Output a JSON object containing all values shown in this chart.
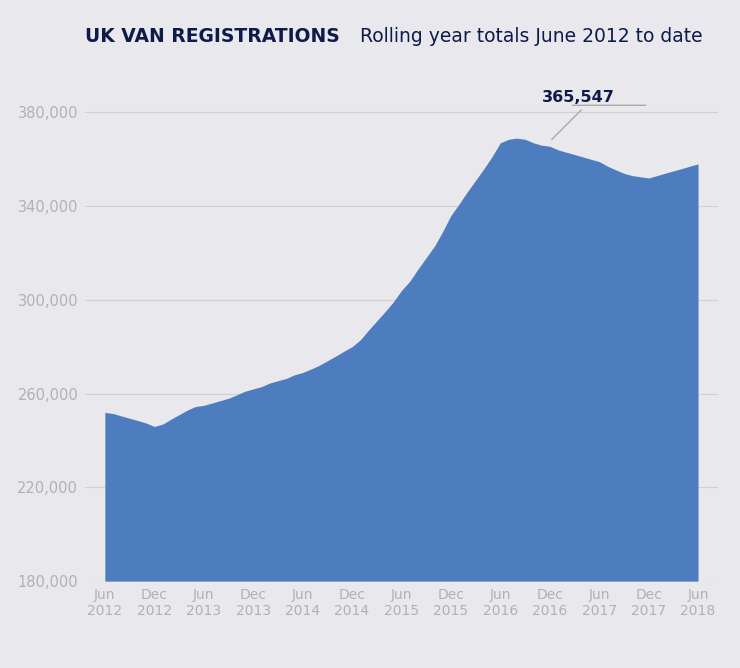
{
  "title_bold": "UK VAN REGISTRATIONS",
  "title_regular": " Rolling year totals June 2012 to date",
  "bg_color": "#e9e9ed",
  "plot_bg_color": "#e9e9ed",
  "fill_color": "#4e7dbf",
  "ylim": [
    180000,
    398000
  ],
  "yticks": [
    180000,
    220000,
    260000,
    300000,
    340000,
    380000
  ],
  "ytick_labels": [
    "180,000",
    "220,000",
    "260,000",
    "300,000",
    "340,000",
    "380,000"
  ],
  "peak_value": "365,547",
  "peak_annotation_color": "#0d1a4a",
  "axis_label_color": "#b0b0b8",
  "x_labels": [
    "Jun\n2012",
    "Dec\n2012",
    "Jun\n2013",
    "Dec\n2013",
    "Jun\n2014",
    "Dec\n2014",
    "Jun\n2015",
    "Dec\n2015",
    "Jun\n2016",
    "Dec\n2016",
    "Jun\n2017",
    "Dec\n2017",
    "Jun\n2018"
  ],
  "xtick_positions": [
    0,
    1,
    2,
    3,
    4,
    5,
    6,
    7,
    8,
    9,
    10,
    11,
    12
  ],
  "grid_color": "#d0d0d5",
  "annotation_line_color": "#aaaaaa"
}
